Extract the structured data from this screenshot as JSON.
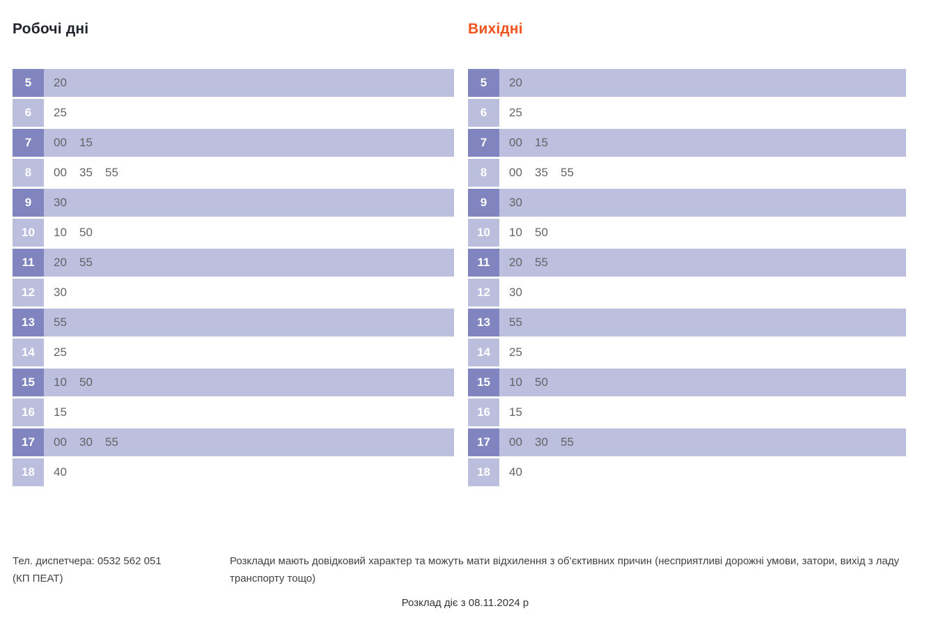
{
  "titles": {
    "weekdays": "Робочі дні",
    "weekends": "Вихідні"
  },
  "colors": {
    "weekends_title": "#f0541e",
    "hour_badge_dark": "#8084bf",
    "hour_badge_light": "#bbbedd",
    "row_band": "#bcbfdd",
    "minute_text": "#626366"
  },
  "schedule": {
    "hours_range": "5-18",
    "rows": [
      {
        "hour": "5",
        "minutes": [
          "20"
        ]
      },
      {
        "hour": "6",
        "minutes": [
          "25"
        ]
      },
      {
        "hour": "7",
        "minutes": [
          "00",
          "15"
        ]
      },
      {
        "hour": "8",
        "minutes": [
          "00",
          "35",
          "55"
        ]
      },
      {
        "hour": "9",
        "minutes": [
          "30"
        ]
      },
      {
        "hour": "10",
        "minutes": [
          "10",
          "50"
        ]
      },
      {
        "hour": "11",
        "minutes": [
          "20",
          "55"
        ]
      },
      {
        "hour": "12",
        "minutes": [
          "30"
        ]
      },
      {
        "hour": "13",
        "minutes": [
          "55"
        ]
      },
      {
        "hour": "14",
        "minutes": [
          "25"
        ]
      },
      {
        "hour": "15",
        "minutes": [
          "10",
          "50"
        ]
      },
      {
        "hour": "16",
        "minutes": [
          "15"
        ]
      },
      {
        "hour": "17",
        "minutes": [
          "00",
          "30",
          "55"
        ]
      },
      {
        "hour": "18",
        "minutes": [
          "40"
        ]
      }
    ]
  },
  "footer": {
    "phone_line1": "Тел. диспетчера: 0532 562 051",
    "phone_line2": "(КП ПЕАТ)",
    "disclaimer": "Розклади мають довідковий характер та можуть мати відхилення з об’єктивних причин (несприятливі дорожні умови, затори, вихід з ладу транспорту тощо)",
    "validity": "Розклад діє з 08.11.2024 р"
  }
}
